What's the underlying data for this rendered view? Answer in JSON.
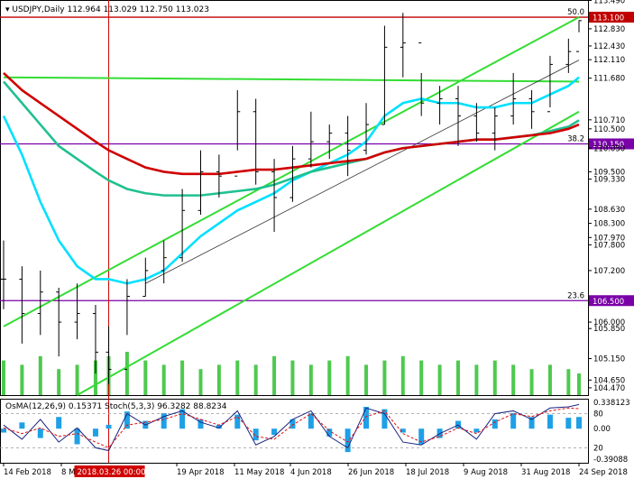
{
  "chart_data": {
    "type": "line",
    "header": {
      "symbol": "USDJPY,Daily",
      "ohlc": [
        "112.964",
        "113.029",
        "112.750",
        "113.023"
      ]
    },
    "indicator_header": {
      "osma": "OsMA(12,26,9) 0.15371",
      "stoch": "Stoch(5,3,3) 96.3282 88.8234"
    },
    "price_axis": {
      "range": [
        104.3,
        113.5
      ],
      "ticks": [
        {
          "label": "113.490",
          "value": 113.49
        },
        {
          "label": "112.830",
          "value": 112.83
        },
        {
          "label": "112.430",
          "value": 112.43
        },
        {
          "label": "112.110",
          "value": 112.11
        },
        {
          "label": "111.680",
          "value": 111.68
        },
        {
          "label": "110.710",
          "value": 110.71
        },
        {
          "label": "110.500",
          "value": 110.5
        },
        {
          "label": "110.050",
          "value": 110.05
        },
        {
          "label": "109.500",
          "value": 109.5
        },
        {
          "label": "109.330",
          "value": 109.33
        },
        {
          "label": "108.630",
          "value": 108.63
        },
        {
          "label": "108.300",
          "value": 108.3
        },
        {
          "label": "107.970",
          "value": 107.97
        },
        {
          "label": "107.800",
          "value": 107.8
        },
        {
          "label": "107.200",
          "value": 107.2
        },
        {
          "label": "106.000",
          "value": 106.0
        },
        {
          "label": "105.850",
          "value": 105.85
        },
        {
          "label": "105.150",
          "value": 105.15
        },
        {
          "label": "104.650",
          "value": 104.65
        },
        {
          "label": "104.470",
          "value": 104.47
        }
      ]
    },
    "levels": [
      {
        "label": "113.100",
        "value": 113.1,
        "color": "#c00000",
        "fib": "50.0"
      },
      {
        "label": "110.150",
        "value": 110.15,
        "color": "#7a00a8",
        "fib": "38.2"
      },
      {
        "label": "106.500",
        "value": 106.5,
        "color": "#7a00a8",
        "fib": "23.6"
      }
    ],
    "x_axis": {
      "labels": [
        "14 Feb 2018",
        "8 M",
        "19 Apr 2018",
        "11 May 2018",
        "4 Jun 2018",
        "26 Jun 2018",
        "18 Jul 2018",
        "9 Aug 2018",
        "31 Aug 2018",
        "24 Sep 2018"
      ],
      "crosshair_label": "2018.03.26 00:00"
    },
    "price_series": {
      "x": [
        "2018-02-14",
        "2018-02-21",
        "2018-02-28",
        "2018-03-07",
        "2018-03-14",
        "2018-03-21",
        "2018-03-26",
        "2018-04-02",
        "2018-04-09",
        "2018-04-16",
        "2018-04-23",
        "2018-04-30",
        "2018-05-07",
        "2018-05-14",
        "2018-05-21",
        "2018-05-28",
        "2018-06-04",
        "2018-06-11",
        "2018-06-18",
        "2018-06-25",
        "2018-07-02",
        "2018-07-09",
        "2018-07-16",
        "2018-07-23",
        "2018-07-30",
        "2018-08-06",
        "2018-08-13",
        "2018-08-20",
        "2018-08-27",
        "2018-09-03",
        "2018-09-10",
        "2018-09-17",
        "2018-09-21"
      ],
      "close": [
        107.0,
        106.2,
        106.7,
        106.0,
        106.2,
        105.3,
        104.9,
        106.6,
        107.2,
        107.5,
        108.6,
        109.5,
        109.4,
        110.9,
        109.5,
        108.9,
        109.8,
        110.2,
        110.4,
        110.0,
        110.6,
        112.4,
        112.5,
        111.1,
        111.2,
        110.8,
        110.4,
        110.8,
        111.2,
        110.9,
        112.0,
        112.3,
        113.02
      ],
      "high": [
        107.9,
        107.3,
        107.2,
        106.8,
        106.9,
        106.4,
        105.9,
        107.0,
        107.5,
        107.9,
        109.1,
        110.0,
        109.9,
        111.4,
        111.2,
        109.8,
        110.1,
        110.9,
        110.6,
        110.8,
        111.1,
        112.9,
        113.2,
        111.8,
        111.5,
        111.5,
        111.1,
        111.0,
        111.8,
        111.4,
        112.2,
        112.6,
        113.03
      ],
      "low": [
        106.3,
        105.5,
        105.7,
        105.2,
        105.6,
        104.8,
        104.55,
        105.7,
        106.6,
        106.9,
        107.4,
        108.5,
        108.9,
        110.0,
        109.2,
        108.1,
        108.8,
        109.6,
        109.8,
        109.4,
        109.9,
        110.6,
        111.7,
        110.8,
        110.6,
        110.1,
        110.2,
        110.0,
        110.6,
        110.5,
        111.0,
        111.8,
        112.75
      ]
    },
    "moving_averages": [
      {
        "color": "#00e0ff",
        "values": [
          110.8,
          109.9,
          108.8,
          107.9,
          107.3,
          107.0,
          107.0,
          106.9,
          107.0,
          107.2,
          107.6,
          108.0,
          108.3,
          108.6,
          108.8,
          109.0,
          109.3,
          109.5,
          109.7,
          109.9,
          110.2,
          110.8,
          111.1,
          111.2,
          111.1,
          111.1,
          111.0,
          111.0,
          111.1,
          111.1,
          111.3,
          111.5,
          111.7
        ]
      },
      {
        "color": "#20c090",
        "values": [
          111.6,
          111.1,
          110.6,
          110.1,
          109.8,
          109.5,
          109.3,
          109.1,
          109.0,
          108.95,
          108.95,
          108.95,
          109.0,
          109.05,
          109.1,
          109.2,
          109.35,
          109.5,
          109.6,
          109.7,
          109.8,
          109.95,
          110.05,
          110.1,
          110.15,
          110.2,
          110.25,
          110.25,
          110.3,
          110.35,
          110.45,
          110.55,
          110.7
        ]
      },
      {
        "color": "#d00000",
        "values": [
          111.8,
          111.4,
          111.1,
          110.8,
          110.5,
          110.2,
          110.0,
          109.8,
          109.6,
          109.5,
          109.45,
          109.45,
          109.45,
          109.5,
          109.55,
          109.55,
          109.6,
          109.65,
          109.7,
          109.75,
          109.8,
          109.95,
          110.05,
          110.1,
          110.15,
          110.2,
          110.25,
          110.25,
          110.3,
          110.35,
          110.4,
          110.5,
          110.6
        ]
      }
    ],
    "channel_lines": [
      {
        "color": "#33dd33",
        "from": {
          "x": "2018-02-14",
          "y": 105.9
        },
        "to": {
          "x": "2018-09-21",
          "y": 113.1
        }
      },
      {
        "color": "#33dd33",
        "from": {
          "x": "2018-02-14",
          "y": 111.7
        },
        "to": {
          "x": "2018-09-21",
          "y": 111.6
        }
      },
      {
        "color": "#33dd33",
        "from": {
          "x": "2018-03-14",
          "y": 104.3
        },
        "to": {
          "x": "2018-09-21",
          "y": 110.9
        }
      },
      {
        "color": "#333333",
        "from": {
          "x": "2018-04-09",
          "y": 106.9
        },
        "to": {
          "x": "2018-09-21",
          "y": 112.1
        }
      }
    ],
    "volume": {
      "values": [
        8,
        7,
        9,
        6,
        7,
        8,
        9,
        10,
        8,
        7,
        8,
        6,
        7,
        8,
        7,
        9,
        8,
        7,
        8,
        9,
        7,
        8,
        9,
        8,
        7,
        8,
        7,
        8,
        7,
        6,
        7,
        6,
        5
      ]
    },
    "indicator": {
      "axis_labels": [
        {
          "label": "0.338123",
          "value": 0.338
        },
        {
          "label": "80",
          "value": 80
        },
        {
          "label": "0.00",
          "value": 0.0
        },
        {
          "label": "20",
          "value": 20
        },
        {
          "label": "-0.39088",
          "value": -0.391
        }
      ],
      "osma_range": [
        -0.391,
        0.338
      ],
      "osma": [
        -0.05,
        0.08,
        -0.12,
        0.15,
        -0.2,
        -0.1,
        0.05,
        0.22,
        0.1,
        0.2,
        0.25,
        0.12,
        0.05,
        0.18,
        -0.15,
        -0.08,
        0.12,
        0.2,
        -0.1,
        -0.3,
        0.28,
        0.25,
        -0.05,
        -0.2,
        -0.12,
        0.1,
        -0.05,
        0.12,
        0.2,
        0.15,
        0.18,
        0.14,
        0.15
      ],
      "stoch_main": [
        60,
        35,
        70,
        30,
        55,
        20,
        15,
        80,
        60,
        75,
        85,
        65,
        55,
        85,
        25,
        40,
        70,
        85,
        40,
        20,
        90,
        80,
        30,
        25,
        45,
        60,
        35,
        80,
        85,
        70,
        90,
        92,
        96.3
      ],
      "stoch_signal": [
        55,
        45,
        55,
        40,
        45,
        30,
        20,
        60,
        65,
        70,
        80,
        70,
        60,
        75,
        40,
        35,
        60,
        80,
        50,
        30,
        75,
        85,
        45,
        30,
        40,
        55,
        45,
        65,
        80,
        75,
        85,
        90,
        88.8
      ]
    }
  }
}
